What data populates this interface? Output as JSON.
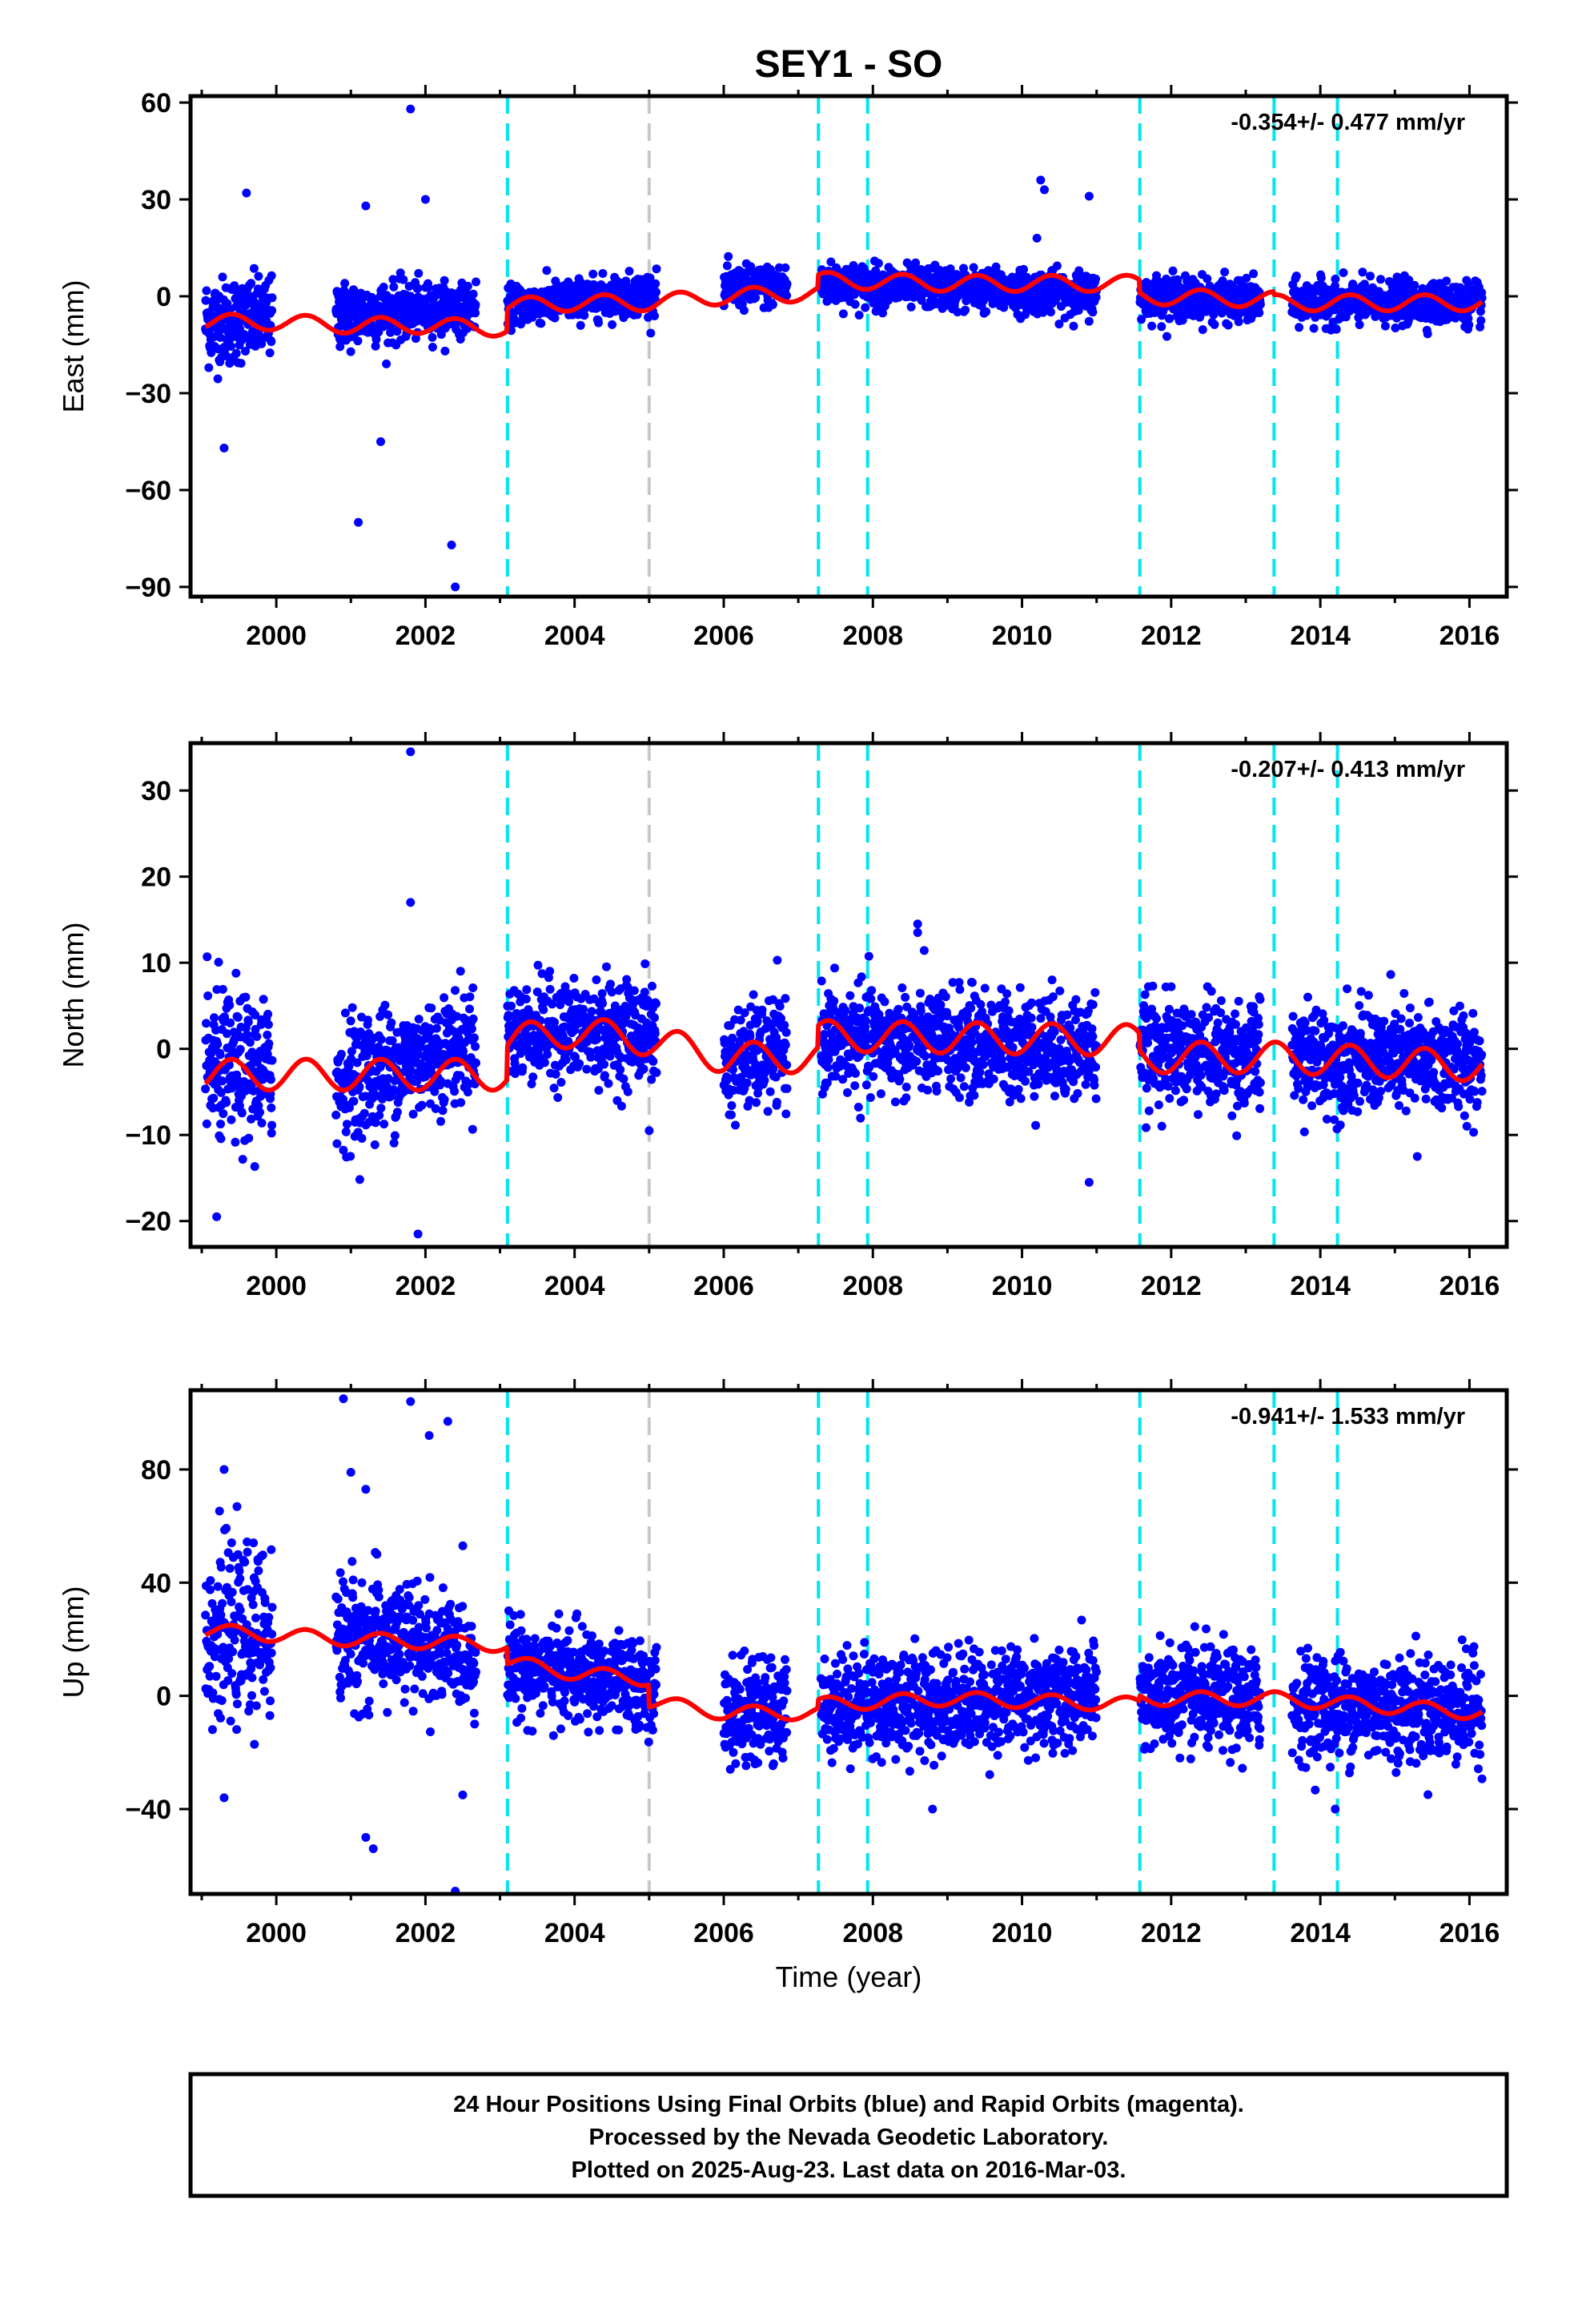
{
  "chart_data": {
    "type": "scatter",
    "title": "SEY1 - SO",
    "xlabel": "Time (year)",
    "xlim": [
      1998.85,
      2016.5
    ],
    "xticks": [
      2000,
      2002,
      2004,
      2006,
      2008,
      2010,
      2012,
      2014,
      2016
    ],
    "data_span": [
      1999.05,
      2016.17
    ],
    "gaps": [
      [
        1999.95,
        2000.8
      ],
      [
        2002.68,
        2003.1
      ],
      [
        2005.1,
        2006.0
      ],
      [
        2006.85,
        2007.3
      ],
      [
        2011.0,
        2011.58
      ],
      [
        2013.2,
        2013.62
      ]
    ],
    "vlines": {
      "cyan": [
        2003.1,
        2007.27,
        2007.93,
        2011.58,
        2013.38,
        2014.23
      ],
      "gray": [
        2005.0
      ]
    },
    "colors": {
      "points": "#0000ff",
      "model": "#ff0000",
      "steps": "#00e5ee",
      "other": "#c8c8c8"
    },
    "panels": [
      {
        "name": "east",
        "ylabel": "East (mm)",
        "ylim": [
          -93,
          62
        ],
        "yticks": [
          60,
          30,
          0,
          -30,
          -60,
          -90
        ],
        "rate": "-0.354+/- 0.477 mm/yr",
        "series": [
          {
            "name": "Final Orbits",
            "color": "#0000ff",
            "stats": {
              "mean": [
                [
                  1999.0,
                  -8
                ],
                [
                  2003.1,
                  -3
                ],
                [
                  2005.0,
                  1
                ],
                [
                  2007.27,
                  4
                ],
                [
                  2011.58,
                  0
                ],
                [
                  2013.38,
                  -2
                ],
                [
                  2016.2,
                  -2
                ]
              ],
              "sd": [
                [
                  1999.0,
                  7
                ],
                [
                  2003.1,
                  3
                ],
                [
                  2007.27,
                  3.2
                ],
                [
                  2011.58,
                  3.2
                ],
                [
                  2016.2,
                  3.2
                ]
              ]
            },
            "outliers": [
              [
                2001.8,
                58
              ],
              [
                2002.4,
                -90
              ],
              [
                2002.35,
                -77
              ],
              [
                2001.1,
                -70
              ],
              [
                1999.3,
                -47
              ],
              [
                2001.4,
                -45
              ],
              [
                1999.6,
                32
              ],
              [
                2002.0,
                30
              ],
              [
                2001.2,
                28
              ],
              [
                2010.25,
                36
              ],
              [
                2010.3,
                33
              ],
              [
                2010.9,
                31
              ],
              [
                2010.2,
                18
              ]
            ]
          }
        ],
        "model": {
          "anchors": [
            [
              1999.05,
              -8
            ],
            [
              2000.0,
              -8
            ],
            [
              2001.0,
              -9
            ],
            [
              2002.0,
              -9
            ],
            [
              2003.09,
              -10
            ],
            [
              2003.1,
              -3
            ],
            [
              2004.0,
              -2
            ],
            [
              2005.0,
              -2
            ],
            [
              2006.0,
              0
            ],
            [
              2007.26,
              1
            ],
            [
              2007.27,
              5
            ],
            [
              2009.0,
              4
            ],
            [
              2011.57,
              4
            ],
            [
              2011.58,
              0
            ],
            [
              2013.37,
              -1
            ],
            [
              2013.38,
              -2
            ],
            [
              2014.5,
              -2
            ],
            [
              2016.17,
              -2
            ]
          ],
          "amp": 2.5
        },
        "_note": null
      },
      {
        "name": "north",
        "ylabel": "North (mm)",
        "ylim": [
          -23,
          35.5
        ],
        "yticks": [
          30,
          20,
          10,
          0,
          -10,
          -20
        ],
        "rate": "-0.207+/- 0.413 mm/yr",
        "series": [
          {
            "name": "Final Orbits",
            "color": "#0000ff",
            "stats": {
              "mean": [
                [
                  1999.0,
                  -2
                ],
                [
                  2000.8,
                  -4
                ],
                [
                  2003.1,
                  2
                ],
                [
                  2005.0,
                  2
                ],
                [
                  2006.0,
                  -2
                ],
                [
                  2007.27,
                  1
                ],
                [
                  2011.58,
                  0
                ],
                [
                  2013.38,
                  -1
                ],
                [
                  2016.2,
                  -1.5
                ]
              ],
              "sd": [
                [
                  1999.0,
                  4.5
                ],
                [
                  2003.1,
                  2.8
                ],
                [
                  2007.27,
                  3
                ],
                [
                  2016.2,
                  3
                ]
              ]
            },
            "outliers": [
              [
                2001.8,
                34.5
              ],
              [
                2001.8,
                17
              ],
              [
                1999.2,
                -19.5
              ],
              [
                2001.9,
                -21.5
              ],
              [
                2010.9,
                -15.5
              ],
              [
                2005.0,
                -9.5
              ],
              [
                2008.6,
                14.5
              ],
              [
                2008.6,
                13.5
              ],
              [
                2015.3,
                -12.5
              ]
            ]
          }
        ],
        "model": {
          "anchors": [
            [
              1999.05,
              -3
            ],
            [
              2001.0,
              -3
            ],
            [
              2003.09,
              -3
            ],
            [
              2003.1,
              1
            ],
            [
              2004.0,
              2
            ],
            [
              2005.0,
              1
            ],
            [
              2006.0,
              -1
            ],
            [
              2007.26,
              -1
            ],
            [
              2007.27,
              1.5
            ],
            [
              2011.57,
              1
            ],
            [
              2011.58,
              -1
            ],
            [
              2013.37,
              -1
            ],
            [
              2013.38,
              -1
            ],
            [
              2016.17,
              -2
            ]
          ],
          "amp": 1.8
        },
        "_note": null
      },
      {
        "name": "up",
        "ylabel": "Up (mm)",
        "ylim": [
          -70,
          108
        ],
        "yticks": [
          80,
          40,
          0,
          -40
        ],
        "rate": "-0.941+/- 1.533 mm/yr",
        "series": [
          {
            "name": "Final Orbits",
            "color": "#0000ff",
            "stats": {
              "mean": [
                [
                  1999.0,
                  22
                ],
                [
                  2001.5,
                  20
                ],
                [
                  2003.1,
                  11
                ],
                [
                  2005.0,
                  3
                ],
                [
                  2006.0,
                  -7
                ],
                [
                  2007.27,
                  -3
                ],
                [
                  2011.58,
                  0
                ],
                [
                  2013.38,
                  -3
                ],
                [
                  2016.2,
                  -5
                ]
              ],
              "sd": [
                [
                  1999.0,
                  15
                ],
                [
                  2003.1,
                  8
                ],
                [
                  2005.0,
                  8
                ],
                [
                  2007.27,
                  9
                ],
                [
                  2016.2,
                  9
                ]
              ]
            },
            "outliers": [
              [
                2000.9,
                105
              ],
              [
                2001.8,
                104
              ],
              [
                2001.0,
                79
              ],
              [
                1999.3,
                80
              ],
              [
                2002.05,
                92
              ],
              [
                2002.3,
                97
              ],
              [
                2001.2,
                73
              ],
              [
                1999.3,
                -36
              ],
              [
                2001.3,
                -54
              ],
              [
                2001.2,
                -50
              ],
              [
                2002.4,
                -69
              ],
              [
                2002.5,
                -35
              ],
              [
                2008.8,
                -40
              ],
              [
                2014.2,
                -40
              ]
            ]
          }
        ],
        "model": {
          "anchors": [
            [
              1999.05,
              23
            ],
            [
              2001.0,
              20
            ],
            [
              2003.09,
              18
            ],
            [
              2003.1,
              12
            ],
            [
              2004.0,
              8
            ],
            [
              2004.99,
              6
            ],
            [
              2005.0,
              -2
            ],
            [
              2006.0,
              -6
            ],
            [
              2007.26,
              -6
            ],
            [
              2007.27,
              -3
            ],
            [
              2009.0,
              -1
            ],
            [
              2011.57,
              -3
            ],
            [
              2011.58,
              -1
            ],
            [
              2013.37,
              -1
            ],
            [
              2013.38,
              -1
            ],
            [
              2016.17,
              -6
            ]
          ],
          "amp": 2.5
        },
        "_note": null
      }
    ]
  },
  "footer": {
    "line1": "24 Hour Positions Using Final Orbits (blue) and Rapid Orbits (magenta).",
    "line2": "Processed by the Nevada Geodetic Laboratory.",
    "line3": "Plotted on 2025-Aug-23. Last data on 2016-Mar-03."
  }
}
